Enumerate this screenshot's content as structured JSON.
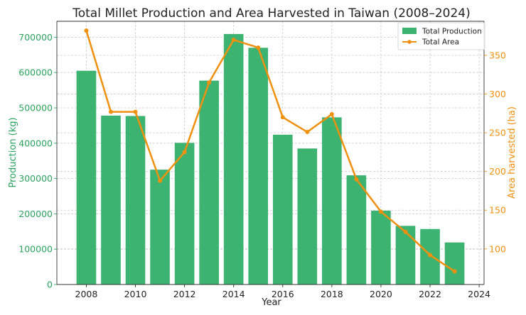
{
  "chart_data": {
    "type": "bar+line",
    "title": "Total Millet Production and Area Harvested in Taiwan (2008–2024)",
    "xlabel": "Year",
    "ylabel_left": "Production (kg)",
    "ylabel_right": "Area harvested (ha)",
    "x": [
      2008,
      2009,
      2010,
      2011,
      2012,
      2013,
      2014,
      2015,
      2016,
      2017,
      2018,
      2019,
      2020,
      2021,
      2022,
      2023
    ],
    "series": [
      {
        "name": "Total Production",
        "type": "bar",
        "axis": "left",
        "color": "#3cb371",
        "values": [
          605000,
          478000,
          477000,
          325000,
          401000,
          577000,
          709000,
          670000,
          424000,
          385000,
          473000,
          309000,
          209000,
          166000,
          157000,
          119000
        ]
      },
      {
        "name": "Total Area",
        "type": "line",
        "axis": "right",
        "color": "#f0900f",
        "values": [
          382,
          277,
          277,
          188,
          225,
          315,
          370,
          360,
          270,
          251,
          274,
          190,
          148,
          122,
          92,
          71
        ]
      }
    ],
    "xlim": [
      2006.8,
      2024.2
    ],
    "ylim_left": [
      0,
      745000
    ],
    "ylim_right": [
      54,
      394
    ],
    "xticks": [
      "2008",
      "2010",
      "2012",
      "2014",
      "2016",
      "2018",
      "2020",
      "2022",
      "2024"
    ],
    "yticks_left": [
      "0",
      "100000",
      "200000",
      "300000",
      "400000",
      "500000",
      "600000",
      "700000"
    ],
    "yticks_right": [
      "100",
      "150",
      "200",
      "250",
      "300",
      "350"
    ],
    "grid": true,
    "legend_position": "top-right",
    "left_axis_color": "#2ca25f",
    "right_axis_color": "#f0900f"
  }
}
